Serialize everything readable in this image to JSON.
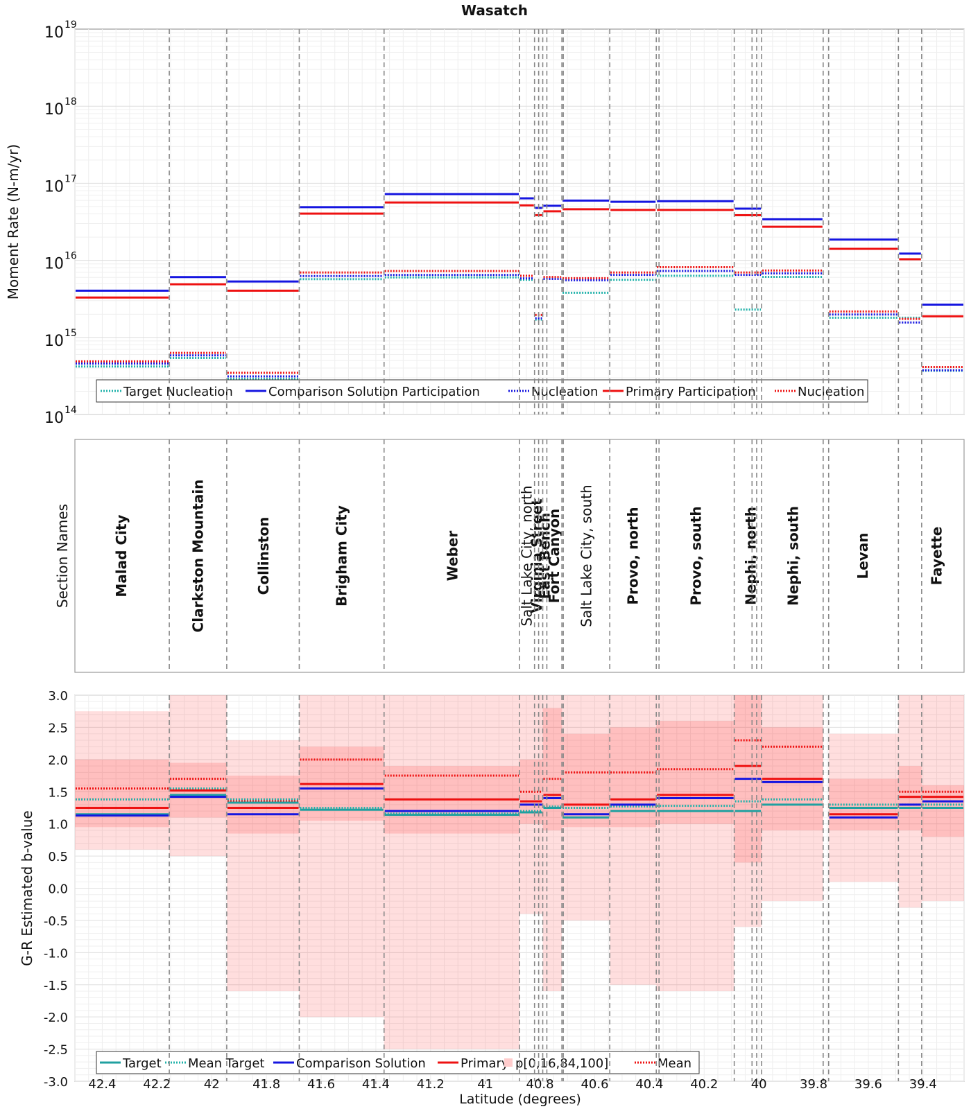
{
  "title": "Wasatch",
  "xlabel": "Latitude (degrees)",
  "xticks": [
    "42.4",
    "42.2",
    "42",
    "41.8",
    "41.6",
    "41.4",
    "41.2",
    "41",
    "40.8",
    "40.6",
    "40.4",
    "40.2",
    "40",
    "39.8",
    "39.6",
    "39.4"
  ],
  "top_panel": {
    "ylabel": "Moment Rate (N-m/yr)",
    "yticks": [
      {
        "base": "10",
        "exp": "14"
      },
      {
        "base": "10",
        "exp": "15"
      },
      {
        "base": "10",
        "exp": "16"
      },
      {
        "base": "10",
        "exp": "17"
      },
      {
        "base": "10",
        "exp": "18"
      },
      {
        "base": "10",
        "exp": "19"
      }
    ],
    "legend": [
      "Target Nucleation",
      "Comparison Solution Participation",
      "Nucleation",
      "Primary Participation",
      "Nucleation"
    ]
  },
  "middle_panel": {
    "ylabel": "Section Names",
    "sections": [
      {
        "name": "Malad City",
        "bold": true
      },
      {
        "name": "Clarkston Mountain",
        "bold": true
      },
      {
        "name": "Collinston",
        "bold": true
      },
      {
        "name": "Brigham City",
        "bold": true
      },
      {
        "name": "Weber",
        "bold": true
      },
      {
        "name": "Salt Lake City, north",
        "bold": false
      },
      {
        "name": "Virginia Street",
        "bold": true
      },
      {
        "name": "East Bench",
        "bold": true
      },
      {
        "name": "Fort Canyon",
        "bold": true
      },
      {
        "name": "Salt Lake City, south",
        "bold": false
      },
      {
        "name": "Provo, north",
        "bold": true
      },
      {
        "name": "Provo, south",
        "bold": true
      },
      {
        "name": "Nephi, north",
        "bold": true
      },
      {
        "name": "Nephi, south",
        "bold": true
      },
      {
        "name": "Levan",
        "bold": true
      },
      {
        "name": "Fayette",
        "bold": true
      }
    ]
  },
  "bottom_panel": {
    "ylabel": "G-R Estimated b-value",
    "yticks": [
      "3.0",
      "2.5",
      "2.0",
      "1.5",
      "1.0",
      "0.5",
      "0.0",
      "-0.5",
      "-1.0",
      "-1.5",
      "-2.0",
      "-2.5",
      "-3.0"
    ],
    "legend": [
      "Target",
      "Mean Target",
      "Comparison Solution",
      "Primary",
      "p[0,16,84,100]",
      "Mean"
    ]
  },
  "chart_data": {
    "type": "line",
    "x_range": [
      42.5,
      39.25
    ],
    "x_reversed": true,
    "section_boundaries": [
      42.155,
      41.945,
      41.68,
      41.37,
      40.875,
      40.82,
      40.805,
      40.79,
      40.775,
      40.72,
      40.715,
      40.545,
      40.375,
      40.365,
      40.09,
      40.025,
      40.008,
      39.99,
      39.765,
      39.745,
      39.49,
      39.405
    ],
    "moment_rate": {
      "yscale": "log",
      "ylim": [
        100000000000000.0,
        1e+19
      ],
      "segments": [
        {
          "x0": 42.5,
          "x1": 42.155,
          "target": 420000000000000.0,
          "comp_part": 3800000000000000.0,
          "comp_nucl": 440000000000000.0,
          "prim_part": 3500000000000000.0,
          "prim_nucl": 450000000000000.0
        },
        {
          "x0": 42.155,
          "x1": 41.945,
          "target": 540000000000000.0,
          "comp_part": 5700000000000000.0,
          "comp_nucl": 560000000000000.0,
          "prim_part": 5200000000000000.0,
          "prim_nucl": 580000000000000.0
        },
        {
          "x0": 41.945,
          "x1": 41.68,
          "target": 290000000000000.0,
          "comp_part": 5000000000000000.0,
          "comp_nucl": 300000000000000.0,
          "prim_part": 4300000000000000.0,
          "prim_nucl": 320000000000000.0
        },
        {
          "x0": 41.68,
          "x1": 41.37,
          "target": 5700000000000000.0,
          "comp_part": 4.6e+16,
          "comp_nucl": 6000000000000000.0,
          "prim_part": 4.3e+16,
          "prim_nucl": 6400000000000000.0
        },
        {
          "x0": 41.37,
          "x1": 40.875,
          "target": 6000000000000000.0,
          "comp_part": 6.8e+16,
          "comp_nucl": 6200000000000000.0,
          "prim_part": 6e+16,
          "prim_nucl": 6700000000000000.0
        },
        {
          "x0": 40.875,
          "x1": 40.82,
          "target": 5600000000000000.0,
          "comp_part": 6e+16,
          "comp_nucl": 5600000000000000.0,
          "prim_part": 5.5e+16,
          "prim_nucl": 5800000000000000.0
        },
        {
          "x0": 40.82,
          "x1": 40.79,
          "target": 1700000000000000.0,
          "comp_part": 4.5e+16,
          "comp_nucl": 1700000000000000.0,
          "prim_part": 4.1e+16,
          "prim_nucl": 1800000000000000.0
        },
        {
          "x0": 40.79,
          "x1": 40.72,
          "target": 6000000000000000.0,
          "comp_part": 4.8e+16,
          "comp_nucl": 5500000000000000.0,
          "prim_part": 4.6e+16,
          "prim_nucl": 5600000000000000.0
        },
        {
          "x0": 40.72,
          "x1": 40.545,
          "target": 3800000000000000.0,
          "comp_part": 5.6e+16,
          "comp_nucl": 5300000000000000.0,
          "prim_part": 4.9e+16,
          "prim_nucl": 5400000000000000.0
        },
        {
          "x0": 40.545,
          "x1": 40.375,
          "target": 5600000000000000.0,
          "comp_part": 5.4e+16,
          "comp_nucl": 6200000000000000.0,
          "prim_part": 4.8e+16,
          "prim_nucl": 6400000000000000.0
        },
        {
          "x0": 40.375,
          "x1": 40.09,
          "target": 6300000000000000.0,
          "comp_part": 5.5e+16,
          "comp_nucl": 7000000000000000.0,
          "prim_part": 4.8e+16,
          "prim_nucl": 7500000000000000.0
        },
        {
          "x0": 40.09,
          "x1": 39.99,
          "target": 2300000000000000.0,
          "comp_part": 4.4e+16,
          "comp_nucl": 6200000000000000.0,
          "prim_part": 4.1e+16,
          "prim_nucl": 6400000000000000.0
        },
        {
          "x0": 39.99,
          "x1": 39.765,
          "target": 6100000000000000.0,
          "comp_part": 3.2e+16,
          "comp_nucl": 6500000000000000.0,
          "prim_part": 2.9e+16,
          "prim_nucl": 6800000000000000.0
        },
        {
          "x0": 39.745,
          "x1": 39.49,
          "target": 1800000000000000.0,
          "comp_part": 1.75e+16,
          "comp_nucl": 1900000000000000.0,
          "prim_part": 1.5e+16,
          "prim_nucl": 2000000000000000.0
        },
        {
          "x0": 39.49,
          "x1": 39.405,
          "target": 1800000000000000.0,
          "comp_part": 1.15e+16,
          "comp_nucl": 1500000000000000.0,
          "prim_part": 1.1e+16,
          "prim_nucl": 1600000000000000.0
        },
        {
          "x0": 39.405,
          "x1": 39.25,
          "target": 370000000000000.0,
          "comp_part": 2500000000000000.0,
          "comp_nucl": 360000000000000.0,
          "prim_part": 2000000000000000.0,
          "prim_nucl": 380000000000000.0
        }
      ]
    },
    "b_value": {
      "ylim": [
        -3.0,
        3.0
      ],
      "segments": [
        {
          "x0": 42.5,
          "x1": 42.155,
          "target": 1.15,
          "mean_target": 1.38,
          "comp": 1.13,
          "primary": 1.25,
          "mean": 1.55,
          "p0": 0.6,
          "p16": 0.95,
          "p84": 2.0,
          "p100": 2.75
        },
        {
          "x0": 42.155,
          "x1": 41.945,
          "target": 1.45,
          "mean_target": 1.55,
          "comp": 1.42,
          "primary": 1.52,
          "mean": 1.7,
          "p0": 0.5,
          "p16": 1.1,
          "p84": 1.95,
          "p100": 3.0
        },
        {
          "x0": 41.945,
          "x1": 41.68,
          "target": 1.33,
          "mean_target": 1.38,
          "comp": 1.15,
          "primary": 1.25,
          "mean": 1.35,
          "p0": -1.6,
          "p16": 0.85,
          "p84": 1.75,
          "p100": 2.3
        },
        {
          "x0": 41.68,
          "x1": 41.37,
          "target": 1.22,
          "mean_target": 1.25,
          "comp": 1.55,
          "primary": 1.62,
          "mean": 2.0,
          "p0": -2.0,
          "p16": 1.05,
          "p84": 2.2,
          "p100": 3.0
        },
        {
          "x0": 41.37,
          "x1": 40.875,
          "target": 1.14,
          "mean_target": 1.16,
          "comp": 1.2,
          "primary": 1.38,
          "mean": 1.75,
          "p0": -2.5,
          "p16": 0.85,
          "p84": 1.9,
          "p100": 3.0
        },
        {
          "x0": 40.875,
          "x1": 40.79,
          "target": 1.18,
          "mean_target": 1.2,
          "comp": 1.3,
          "primary": 1.35,
          "mean": 1.5,
          "p0": -0.4,
          "p16": 1.0,
          "p84": 2.0,
          "p100": 3.0
        },
        {
          "x0": 40.79,
          "x1": 40.72,
          "target": 1.25,
          "mean_target": 1.27,
          "comp": 1.4,
          "primary": 1.45,
          "mean": 1.7,
          "p0": -1.6,
          "p16": 0.9,
          "p84": 2.8,
          "p100": 3.0
        },
        {
          "x0": 40.72,
          "x1": 40.545,
          "target": 1.1,
          "mean_target": 1.25,
          "comp": 1.15,
          "primary": 1.3,
          "mean": 1.8,
          "p0": -0.5,
          "p16": 0.95,
          "p84": 2.4,
          "p100": 3.0
        },
        {
          "x0": 40.545,
          "x1": 40.375,
          "target": 1.2,
          "mean_target": 1.27,
          "comp": 1.3,
          "primary": 1.38,
          "mean": 1.8,
          "p0": -1.5,
          "p16": 0.95,
          "p84": 2.5,
          "p100": 3.0
        },
        {
          "x0": 40.375,
          "x1": 40.09,
          "target": 1.2,
          "mean_target": 1.28,
          "comp": 1.4,
          "primary": 1.45,
          "mean": 1.85,
          "p0": -1.6,
          "p16": 1.0,
          "p84": 2.6,
          "p100": 3.0
        },
        {
          "x0": 40.09,
          "x1": 39.99,
          "target": 1.2,
          "mean_target": 1.35,
          "comp": 1.7,
          "primary": 1.9,
          "mean": 2.3,
          "p0": -0.6,
          "p16": 0.4,
          "p84": 3.0,
          "p100": 3.0
        },
        {
          "x0": 39.99,
          "x1": 39.765,
          "target": 1.3,
          "mean_target": 1.38,
          "comp": 1.65,
          "primary": 1.7,
          "mean": 2.2,
          "p0": -0.2,
          "p16": 0.9,
          "p84": 2.5,
          "p100": 3.0
        },
        {
          "x0": 39.745,
          "x1": 39.49,
          "target": 1.25,
          "mean_target": 1.3,
          "comp": 1.1,
          "primary": 1.15,
          "mean": 1.25,
          "p0": 0.1,
          "p16": 0.9,
          "p84": 1.7,
          "p100": 2.4
        },
        {
          "x0": 39.49,
          "x1": 39.405,
          "target": 1.25,
          "mean_target": 1.3,
          "comp": 1.3,
          "primary": 1.42,
          "mean": 1.5,
          "p0": -0.3,
          "p16": 0.9,
          "p84": 1.9,
          "p100": 3.0
        },
        {
          "x0": 39.405,
          "x1": 39.25,
          "target": 1.25,
          "mean_target": 1.3,
          "comp": 1.35,
          "primary": 1.42,
          "mean": 1.5,
          "p0": -0.2,
          "p16": 0.8,
          "p84": 1.6,
          "p100": 3.0
        }
      ]
    }
  }
}
